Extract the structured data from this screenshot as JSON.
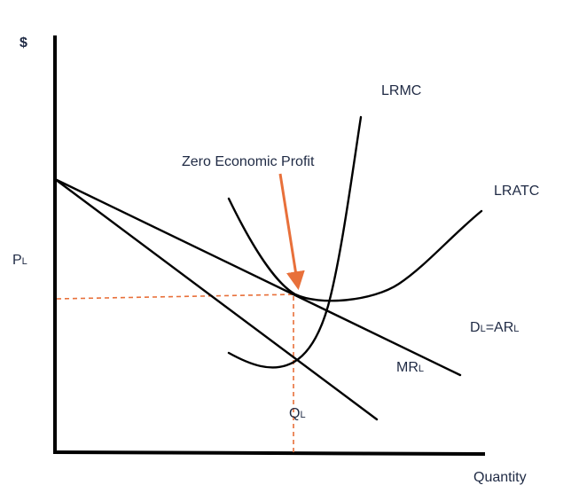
{
  "title": "",
  "labels": {
    "y_axis": "$",
    "x_axis": "Quantity",
    "price": "PL",
    "price_base": "P",
    "price_sub": "L",
    "quantity": "QL",
    "quantity_base": "Q",
    "quantity_sub": "L",
    "lrmc": "LRMC",
    "lratc": "LRATC",
    "demand_base_1": "D",
    "demand_sub_1": "L",
    "demand_eq": "=AR",
    "demand_sub_2": "L",
    "mr_base": "MR",
    "mr_sub": "L",
    "annotation": "Zero Economic Profit"
  },
  "colors": {
    "curves": "#000000",
    "guides": "#e8703a",
    "arrow": "#e8703a",
    "text": "#1f2a44"
  },
  "curves": [
    "LRMC",
    "LRATC",
    "DL=ARL",
    "MRL"
  ]
}
